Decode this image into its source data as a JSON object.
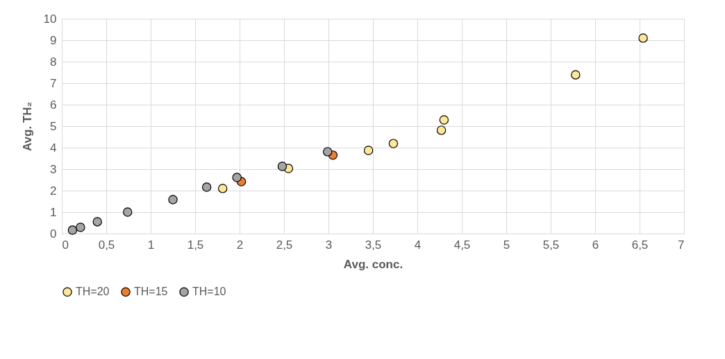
{
  "chart_data": {
    "type": "scatter",
    "xlabel": "Avg. conc.",
    "ylabel": "Avg. TH₂",
    "xlim": [
      0,
      7
    ],
    "xticks": [
      0,
      {
        "value": 0.5,
        "label": "0,5"
      },
      1,
      {
        "value": 1.5,
        "label": "1,5"
      },
      2,
      {
        "value": 2.5,
        "label": "2,5"
      },
      3,
      {
        "value": 3.5,
        "label": "3,5"
      },
      4,
      {
        "value": 4.5,
        "label": "4,5"
      },
      5,
      {
        "value": 5.5,
        "label": "5,5"
      },
      6,
      {
        "value": 6.5,
        "label": "6,5"
      },
      7
    ],
    "ylim": [
      0,
      10
    ],
    "yticks": [
      0,
      1,
      2,
      3,
      4,
      5,
      6,
      7,
      8,
      9,
      10
    ],
    "grid": true,
    "legend": "bottom",
    "marker": "circle",
    "series": [
      {
        "name": "TH=20",
        "color": "#ffe699",
        "x": [
          1.81,
          2.55,
          3.45,
          3.73,
          4.27,
          4.3,
          5.78,
          6.54
        ],
        "values": [
          2.1,
          3.03,
          3.87,
          4.19,
          4.81,
          5.29,
          7.39,
          9.1
        ]
      },
      {
        "name": "TH=15",
        "color": "#ed7d31",
        "x": [
          2.02,
          3.05
        ],
        "values": [
          2.42,
          3.65
        ]
      },
      {
        "name": "TH=10",
        "color": "#a5a5a5",
        "x": [
          0.12,
          0.21,
          0.4,
          0.74,
          1.25,
          1.63,
          1.97,
          2.48,
          2.99
        ],
        "values": [
          0.16,
          0.29,
          0.55,
          1.0,
          1.58,
          2.16,
          2.61,
          3.13,
          3.81
        ]
      }
    ]
  }
}
